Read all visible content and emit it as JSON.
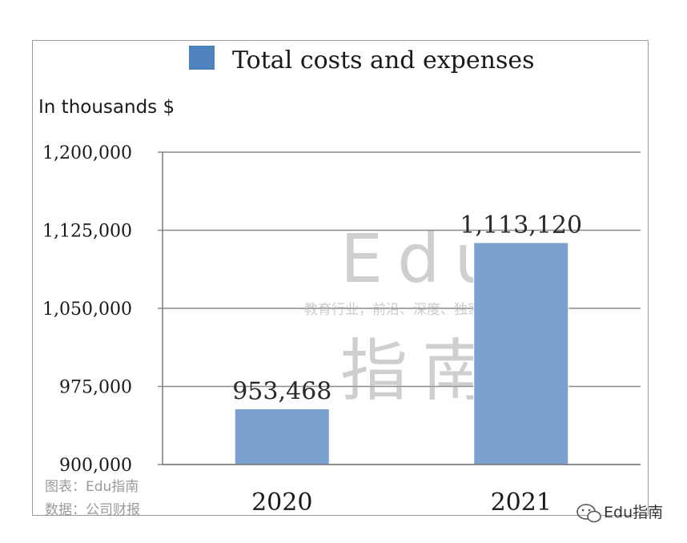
{
  "chart_data": {
    "type": "bar",
    "title": "",
    "categories": [
      "2020",
      "2021"
    ],
    "series": [
      {
        "name": "Total costs and expenses",
        "values": [
          953468,
          1113120
        ]
      }
    ],
    "data_labels": [
      "953,468",
      "1,113,120"
    ],
    "ylabel": "In thousands $",
    "xlabel": "",
    "ylim": [
      900000,
      1200000
    ],
    "yticks": [
      900000,
      975000,
      1050000,
      1125000,
      1200000
    ],
    "ytick_labels": [
      "900,000",
      "975,000",
      "1,050,000",
      "1,125,000",
      "1,200,000"
    ],
    "grid": true,
    "legend_position": "top",
    "bar_color": "#7ba0cf",
    "legend_swatch_color": "#4f81bd"
  },
  "watermark": {
    "brand_latin": "Edu",
    "tagline": "教育行业，前沿、深度、独家",
    "brand_cn": "指南"
  },
  "footnotes": {
    "chart_credit": "图表：Edu指南",
    "data_source": "数据：公司财报"
  },
  "brand_badge": {
    "label": "Edu指南",
    "icon": "wechat-icon"
  }
}
